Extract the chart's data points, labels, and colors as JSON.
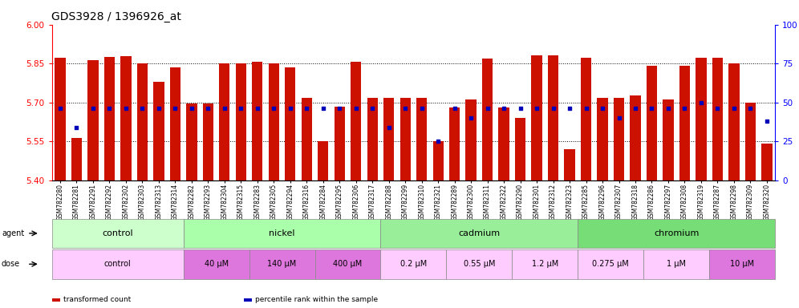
{
  "title": "GDS3928 / 1396926_at",
  "samples": [
    "GSM782280",
    "GSM782281",
    "GSM782291",
    "GSM782292",
    "GSM782302",
    "GSM782303",
    "GSM782313",
    "GSM782314",
    "GSM782282",
    "GSM782293",
    "GSM782304",
    "GSM782315",
    "GSM782283",
    "GSM782305",
    "GSM782294",
    "GSM782316",
    "GSM782284",
    "GSM782295",
    "GSM782306",
    "GSM782317",
    "GSM782288",
    "GSM782299",
    "GSM782310",
    "GSM782321",
    "GSM782289",
    "GSM782300",
    "GSM782311",
    "GSM782322",
    "GSM782290",
    "GSM782301",
    "GSM782312",
    "GSM782323",
    "GSM782285",
    "GSM782296",
    "GSM782307",
    "GSM782318",
    "GSM782286",
    "GSM782297",
    "GSM782308",
    "GSM782319",
    "GSM782287",
    "GSM782298",
    "GSM782309",
    "GSM782320"
  ],
  "bar_values": [
    5.872,
    5.562,
    5.862,
    5.875,
    5.877,
    5.851,
    5.778,
    5.836,
    5.697,
    5.697,
    5.851,
    5.851,
    5.858,
    5.851,
    5.834,
    5.718,
    5.55,
    5.682,
    5.858,
    5.718,
    5.718,
    5.718,
    5.718,
    5.55,
    5.68,
    5.71,
    5.87,
    5.68,
    5.64,
    5.882,
    5.882,
    5.52,
    5.872,
    5.718,
    5.718,
    5.728,
    5.842,
    5.71,
    5.842,
    5.872,
    5.872,
    5.851,
    5.7,
    5.54
  ],
  "percentile_values": [
    46,
    34,
    46,
    46,
    46,
    46,
    46,
    46,
    46,
    46,
    46,
    46,
    46,
    46,
    46,
    46,
    46,
    46,
    46,
    46,
    34,
    46,
    46,
    25,
    46,
    40,
    46,
    46,
    46,
    46,
    46,
    46,
    46,
    46,
    40,
    46,
    46,
    46,
    46,
    50,
    46,
    46,
    46,
    38
  ],
  "ylim_left": [
    5.4,
    6.0
  ],
  "ylim_right": [
    0,
    100
  ],
  "yticks_left": [
    5.4,
    5.55,
    5.7,
    5.85,
    6.0
  ],
  "yticks_right": [
    0,
    25,
    50,
    75,
    100
  ],
  "bar_color": "#cc1100",
  "dot_color": "#0000bb",
  "agent_groups": [
    {
      "label": "control",
      "start": 0,
      "end": 8,
      "color": "#ccffcc"
    },
    {
      "label": "nickel",
      "start": 8,
      "end": 20,
      "color": "#aaffaa"
    },
    {
      "label": "cadmium",
      "start": 20,
      "end": 32,
      "color": "#99ee99"
    },
    {
      "label": "chromium",
      "start": 32,
      "end": 44,
      "color": "#77dd77"
    }
  ],
  "dose_groups": [
    {
      "label": "control",
      "start": 0,
      "end": 8,
      "color": "#ffccff"
    },
    {
      "label": "40 μM",
      "start": 8,
      "end": 12,
      "color": "#dd77dd"
    },
    {
      "label": "140 μM",
      "start": 12,
      "end": 16,
      "color": "#dd77dd"
    },
    {
      "label": "400 μM",
      "start": 16,
      "end": 20,
      "color": "#dd77dd"
    },
    {
      "label": "0.2 μM",
      "start": 20,
      "end": 24,
      "color": "#ffccff"
    },
    {
      "label": "0.55 μM",
      "start": 24,
      "end": 28,
      "color": "#ffccff"
    },
    {
      "label": "1.2 μM",
      "start": 28,
      "end": 32,
      "color": "#ffccff"
    },
    {
      "label": "0.275 μM",
      "start": 32,
      "end": 36,
      "color": "#ffccff"
    },
    {
      "label": "1 μM",
      "start": 36,
      "end": 40,
      "color": "#ffccff"
    },
    {
      "label": "10 μM",
      "start": 40,
      "end": 44,
      "color": "#dd77dd"
    }
  ],
  "legend_items": [
    {
      "label": "transformed count",
      "color": "#cc1100"
    },
    {
      "label": "percentile rank within the sample",
      "color": "#0000bb"
    }
  ]
}
